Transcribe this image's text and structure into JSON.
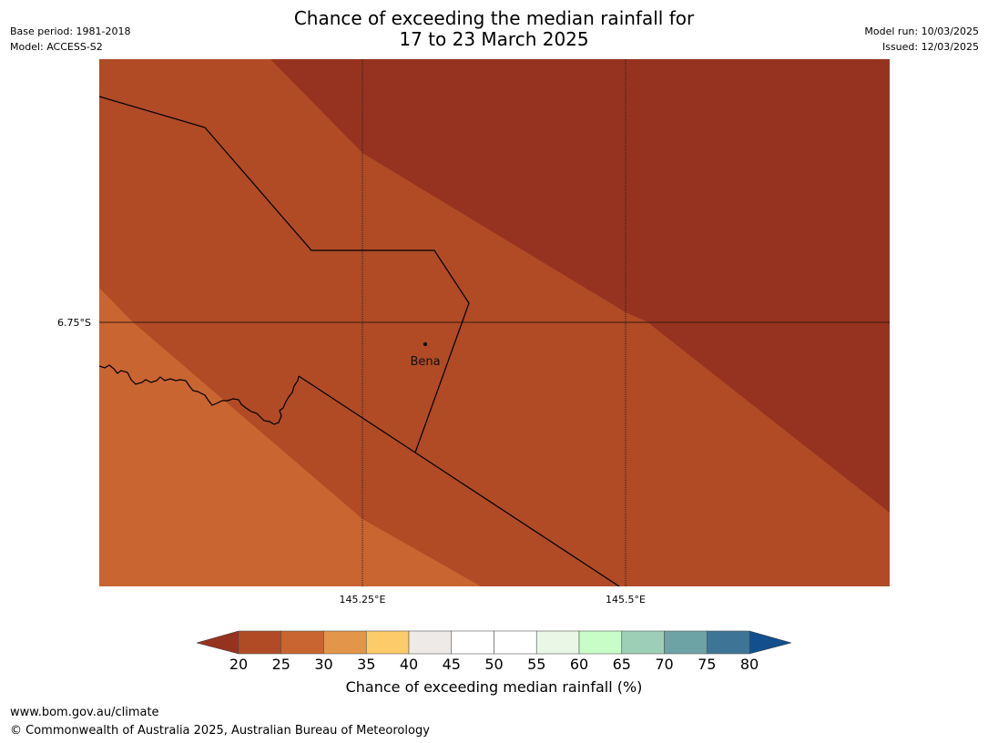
{
  "header": {
    "title_line1": "Chance of exceeding the median rainfall for",
    "title_line2": "17 to 23 March 2025",
    "base_period": "Base period: 1981-2018",
    "model": "Model: ACCESS-S2",
    "model_run": "Model run: 10/03/2025",
    "issued": "Issued: 12/03/2025"
  },
  "map": {
    "lat_label": "6.75°S",
    "lon_labels": [
      "145.25°E",
      "145.5°E"
    ],
    "place": "Bena",
    "zone_colors": {
      "below_25": "#963320",
      "25_to_30": "#b04b25",
      "30_to_35": "#c96531"
    }
  },
  "colorbar": {
    "ticks": [
      "20",
      "25",
      "30",
      "35",
      "40",
      "45",
      "50",
      "55",
      "60",
      "65",
      "70",
      "75",
      "80"
    ],
    "under_color": "#963320",
    "over_color": "#124f8c",
    "colors": [
      "#b04b25",
      "#c96531",
      "#e3964a",
      "#fecb6a",
      "#eeeae7",
      "#ffffff",
      "#ffffff",
      "#eaf7e6",
      "#c8fdc8",
      "#9dcfb7",
      "#6da3a5",
      "#3e7596"
    ],
    "label": "Chance of exceeding median rainfall (%)"
  },
  "footer": {
    "url": "www.bom.gov.au/climate",
    "copyright": "© Commonwealth of Australia 2025, Australian Bureau of Meteorology"
  }
}
